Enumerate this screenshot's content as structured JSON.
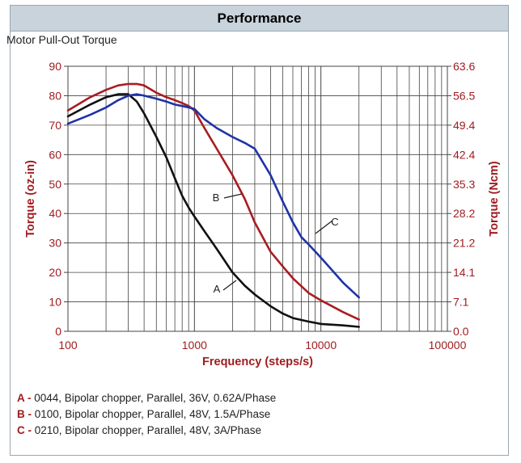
{
  "panel": {
    "header": "Performance",
    "subtitle": "Motor Pull-Out Torque"
  },
  "legend": [
    {
      "key": "A -",
      "text": " 0044, Bipolar chopper, Parallel, 36V, 0.62A/Phase"
    },
    {
      "key": "B -",
      "text": " 0100, Bipolar chopper, Parallel, 48V, 1.5A/Phase"
    },
    {
      "key": "C -",
      "text": " 0210, Bipolar chopper, Parallel, 48V, 3A/Phase"
    }
  ],
  "colors": {
    "axis_label": "#a01c20",
    "grid": "#444444",
    "series_A": "#111111",
    "series_B": "#a81d22",
    "series_C": "#1f33a6"
  },
  "chart_data": {
    "type": "line",
    "xlabel": "Frequency (steps/s)",
    "ylabel": "Torque (oz-in)",
    "y2label": "Torque (Ncm)",
    "xscale": "log",
    "xlim": [
      100,
      100000
    ],
    "ylim": [
      0,
      90
    ],
    "xticks": [
      "100",
      "1000",
      "10000",
      "100000"
    ],
    "yticks": [
      "0",
      "10",
      "20",
      "30",
      "40",
      "50",
      "60",
      "70",
      "80",
      "90"
    ],
    "y2ticks": [
      "0.0",
      "7.1",
      "14.1",
      "21.2",
      "28.2",
      "35.3",
      "42.4",
      "49.4",
      "56.5",
      "63.6"
    ],
    "grid": true,
    "series": [
      {
        "name": "A",
        "x": [
          100,
          150,
          200,
          250,
          300,
          350,
          400,
          500,
          600,
          700,
          800,
          900,
          1000,
          1200,
          1500,
          2000,
          2500,
          3000,
          4000,
          5000,
          6000,
          8000,
          10000,
          15000,
          20000
        ],
        "y": [
          73,
          77,
          79.5,
          80.5,
          80.5,
          78,
          74,
          66,
          59,
          52,
          46,
          42,
          39,
          34,
          28,
          20,
          15.5,
          12.5,
          8.5,
          6,
          4.5,
          3.3,
          2.5,
          2,
          1.5
        ]
      },
      {
        "name": "B",
        "x": [
          100,
          150,
          200,
          250,
          300,
          350,
          400,
          500,
          600,
          700,
          800,
          900,
          1000,
          1200,
          1500,
          2000,
          2500,
          3000,
          4000,
          5000,
          6000,
          8000,
          10000,
          15000,
          20000
        ],
        "y": [
          75,
          79.5,
          82,
          83.5,
          84,
          84,
          83.5,
          81,
          79.5,
          78.5,
          77.5,
          76.5,
          75,
          69,
          62,
          53,
          45,
          37,
          27,
          22,
          18,
          13,
          10.5,
          6.5,
          4
        ]
      },
      {
        "name": "C",
        "x": [
          100,
          150,
          200,
          250,
          300,
          350,
          400,
          500,
          600,
          700,
          800,
          900,
          1000,
          1200,
          1500,
          2000,
          2500,
          3000,
          4000,
          5000,
          6000,
          7000,
          8000,
          10000,
          15000,
          20000
        ],
        "y": [
          70.5,
          73.5,
          76,
          78.5,
          80,
          80.5,
          80,
          79,
          78,
          77,
          76.5,
          76,
          75.5,
          72,
          69,
          66,
          64,
          62,
          53,
          44,
          37,
          32,
          29.5,
          25,
          16.5,
          11.5
        ]
      }
    ],
    "annotations": [
      {
        "text": "A",
        "series": "A"
      },
      {
        "text": "B",
        "series": "B"
      },
      {
        "text": "C",
        "series": "C"
      }
    ]
  }
}
